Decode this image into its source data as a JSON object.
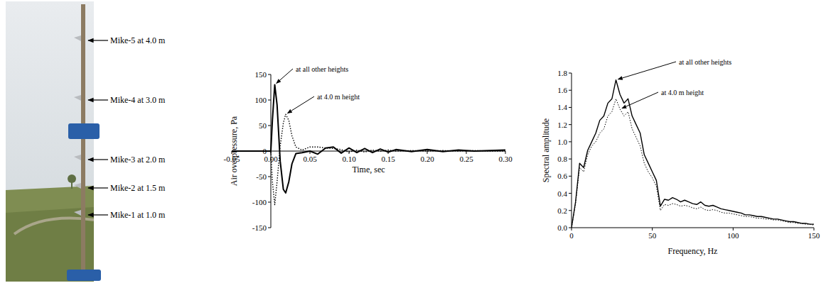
{
  "photo": {
    "labels": [
      "Mike-5 at 4.0 m",
      "Mike-4 at 3.0 m",
      "Mike-3 at 2.0 m",
      "Mike-2 at 1.5 m",
      "Mike-1 at 1.0 m"
    ]
  },
  "chart_data": [
    {
      "type": "line",
      "x_label": "Time, sec",
      "y_label": "Air overpressure, Pa",
      "xlim": [
        -0.05,
        0.3
      ],
      "xticks": [
        -0.05,
        {
          "value": 0,
          "label": "0.00"
        },
        0.05,
        {
          "value": 0.1,
          "label": "0.10"
        },
        0.15,
        {
          "value": 0.2,
          "label": "0.20"
        },
        0.25,
        {
          "value": 0.3,
          "label": "0.30"
        }
      ],
      "ylim": [
        -150,
        150
      ],
      "yticks": [
        -150,
        -100,
        -50,
        0,
        50,
        100,
        150
      ],
      "grid": false,
      "x": [
        -0.05,
        0,
        0.002,
        0.005,
        0.008,
        0.012,
        0.016,
        0.019,
        0.023,
        0.027,
        0.032,
        0.04,
        0.05,
        0.06,
        0.07,
        0.08,
        0.09,
        0.1,
        0.11,
        0.12,
        0.13,
        0.14,
        0.15,
        0.16,
        0.18,
        0.2,
        0.22,
        0.24,
        0.26,
        0.28,
        0.3
      ],
      "series": [
        {
          "name": "at all other heights",
          "color": "#000000",
          "line_style": "solid",
          "values": [
            0,
            0,
            60,
            130,
            90,
            -20,
            -75,
            -82,
            -60,
            -25,
            -5,
            -3,
            0,
            -6,
            6,
            8,
            -4,
            6,
            -3,
            5,
            -3,
            4,
            -2,
            3,
            -1,
            3,
            -1,
            2,
            0,
            1,
            2
          ]
        },
        {
          "name": "at 4.0 m height",
          "color": "#000000",
          "line_style": "dotted",
          "values": [
            0,
            0,
            -60,
            -105,
            -60,
            10,
            55,
            72,
            60,
            30,
            8,
            2,
            8,
            8,
            6,
            5,
            3,
            -2,
            2,
            -2,
            2,
            0,
            2,
            0,
            1,
            0,
            1,
            0,
            1,
            0,
            0
          ]
        }
      ]
    },
    {
      "type": "line",
      "x_label": "Frequency, Hz",
      "y_label": "Spectral amplitude",
      "xlim": [
        0,
        150
      ],
      "xticks": [
        0,
        50,
        100,
        150
      ],
      "ylim": [
        0,
        1.8
      ],
      "yticks": [
        {
          "value": 0,
          "label": "0.0"
        },
        0.2,
        0.4,
        0.6,
        0.8,
        {
          "value": 1,
          "label": "1.0"
        },
        1.2,
        1.4,
        1.6,
        1.8
      ],
      "grid": false,
      "x": [
        0,
        2.5,
        5,
        7.5,
        10,
        12.5,
        15,
        17.5,
        20,
        22.5,
        25,
        27.5,
        30,
        32.5,
        35,
        37.5,
        40,
        42.5,
        45,
        47.5,
        50,
        52.5,
        55,
        57.5,
        60,
        62.5,
        65,
        67.5,
        70,
        72.5,
        75,
        77.5,
        80,
        82.5,
        85,
        87.5,
        90,
        92.5,
        95,
        97.5,
        100,
        102.5,
        105,
        107.5,
        110,
        112.5,
        115,
        117.5,
        120,
        122.5,
        125,
        127.5,
        130,
        132.5,
        135,
        137.5,
        140,
        142.5,
        145,
        147.5,
        150
      ],
      "series": [
        {
          "name": "at all other heights",
          "color": "#000000",
          "line_style": "solid",
          "values": [
            0,
            0.3,
            0.75,
            0.7,
            0.9,
            1.0,
            1.1,
            1.25,
            1.3,
            1.45,
            1.5,
            1.72,
            1.55,
            1.45,
            1.5,
            1.3,
            1.2,
            1.1,
            0.85,
            0.75,
            0.65,
            0.55,
            0.25,
            0.33,
            0.32,
            0.35,
            0.33,
            0.3,
            0.32,
            0.3,
            0.28,
            0.27,
            0.3,
            0.26,
            0.25,
            0.26,
            0.24,
            0.22,
            0.21,
            0.2,
            0.19,
            0.18,
            0.17,
            0.15,
            0.15,
            0.14,
            0.13,
            0.13,
            0.12,
            0.11,
            0.1,
            0.1,
            0.09,
            0.08,
            0.07,
            0.07,
            0.06,
            0.05,
            0.05,
            0.04,
            0.04
          ]
        },
        {
          "name": "at 4.0 m height",
          "color": "#000000",
          "line_style": "dotted",
          "values": [
            0,
            0.28,
            0.7,
            0.65,
            0.85,
            0.95,
            1.0,
            1.1,
            1.15,
            1.3,
            1.35,
            1.5,
            1.38,
            1.3,
            1.35,
            1.15,
            1.05,
            0.95,
            0.75,
            0.65,
            0.58,
            0.48,
            0.2,
            0.27,
            0.26,
            0.28,
            0.27,
            0.25,
            0.26,
            0.25,
            0.23,
            0.22,
            0.24,
            0.21,
            0.2,
            0.21,
            0.2,
            0.18,
            0.17,
            0.17,
            0.16,
            0.15,
            0.14,
            0.13,
            0.13,
            0.12,
            0.11,
            0.11,
            0.1,
            0.1,
            0.09,
            0.09,
            0.08,
            0.07,
            0.06,
            0.06,
            0.05,
            0.05,
            0.04,
            0.04,
            0.03
          ]
        }
      ]
    }
  ]
}
